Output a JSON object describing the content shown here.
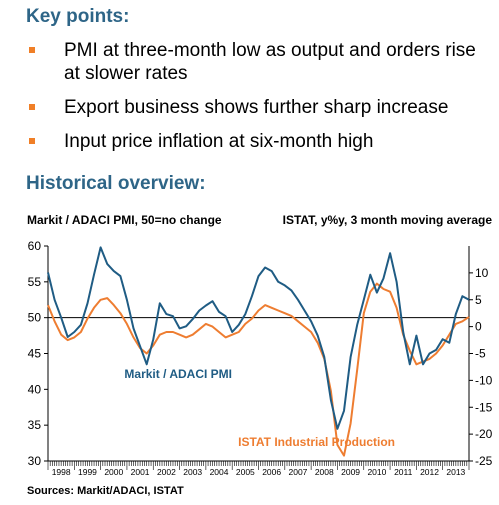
{
  "key_points": {
    "title": "Key points:",
    "items": [
      {
        "text": "PMI at three-month low as output and orders rise at slower rates"
      },
      {
        "text": "Export business shows further sharp increase"
      },
      {
        "text": "Input price inflation at six-month high"
      }
    ]
  },
  "historical": {
    "title": "Historical overview:",
    "sources": "Sources: Markit/ADACI, ISTAT"
  },
  "colors": {
    "title": "#2e6587",
    "bullet": "#f07f27",
    "pmi": "#1f5c84",
    "istat": "#ee7d31"
  },
  "chart_data": {
    "type": "line",
    "left_axis_label": "Markit / ADACI PMI, 50=no change",
    "right_axis_label": "ISTAT, y%y, 3 month moving average",
    "y_left": {
      "lim": [
        30,
        60
      ],
      "ticks": [
        "30",
        "35",
        "40",
        "45",
        "50",
        "55",
        "60"
      ]
    },
    "y_right": {
      "lim": [
        -25,
        15
      ],
      "ticks": [
        "-25",
        "-20",
        "-15",
        "-10",
        "-5",
        "0",
        "5",
        "10"
      ]
    },
    "x_range": [
      1998.0,
      2014.0
    ],
    "x_ticks": [
      "1998",
      "1999",
      "2000",
      "2001",
      "2002",
      "2003",
      "2004",
      "2005",
      "2006",
      "2007",
      "2008",
      "2009",
      "2010",
      "2011",
      "2012",
      "2013"
    ],
    "series": [
      {
        "name": "Markit / ADACI PMI",
        "axis": "left",
        "points": [
          [
            1998.0,
            56.3
          ],
          [
            1998.25,
            52.5
          ],
          [
            1998.5,
            50.0
          ],
          [
            1998.75,
            47.3
          ],
          [
            1999.0,
            48.0
          ],
          [
            1999.25,
            49.0
          ],
          [
            1999.5,
            52.0
          ],
          [
            1999.75,
            56.0
          ],
          [
            2000.0,
            59.8
          ],
          [
            2000.25,
            57.5
          ],
          [
            2000.5,
            56.5
          ],
          [
            2000.75,
            55.8
          ],
          [
            2001.0,
            52.5
          ],
          [
            2001.25,
            48.5
          ],
          [
            2001.5,
            46.0
          ],
          [
            2001.75,
            43.5
          ],
          [
            2002.0,
            47.0
          ],
          [
            2002.25,
            52.0
          ],
          [
            2002.5,
            50.5
          ],
          [
            2002.75,
            50.2
          ],
          [
            2003.0,
            48.5
          ],
          [
            2003.25,
            48.8
          ],
          [
            2003.5,
            49.8
          ],
          [
            2003.75,
            51.0
          ],
          [
            2004.0,
            51.7
          ],
          [
            2004.25,
            52.3
          ],
          [
            2004.5,
            50.8
          ],
          [
            2004.75,
            50.2
          ],
          [
            2005.0,
            48.0
          ],
          [
            2005.25,
            49.0
          ],
          [
            2005.5,
            50.5
          ],
          [
            2005.75,
            53.0
          ],
          [
            2006.0,
            55.8
          ],
          [
            2006.25,
            57.0
          ],
          [
            2006.5,
            56.5
          ],
          [
            2006.75,
            55.0
          ],
          [
            2007.0,
            54.5
          ],
          [
            2007.25,
            53.8
          ],
          [
            2007.5,
            52.5
          ],
          [
            2007.75,
            51.0
          ],
          [
            2008.0,
            49.5
          ],
          [
            2008.25,
            47.5
          ],
          [
            2008.5,
            44.5
          ],
          [
            2008.75,
            38.5
          ],
          [
            2009.0,
            34.5
          ],
          [
            2009.25,
            37.0
          ],
          [
            2009.5,
            44.5
          ],
          [
            2009.75,
            49.0
          ],
          [
            2010.0,
            52.5
          ],
          [
            2010.25,
            56.0
          ],
          [
            2010.5,
            53.5
          ],
          [
            2010.75,
            55.5
          ],
          [
            2011.0,
            59.0
          ],
          [
            2011.25,
            55.0
          ],
          [
            2011.5,
            48.0
          ],
          [
            2011.75,
            43.5
          ],
          [
            2012.0,
            47.5
          ],
          [
            2012.25,
            43.5
          ],
          [
            2012.5,
            45.0
          ],
          [
            2012.75,
            45.5
          ],
          [
            2013.0,
            47.0
          ],
          [
            2013.25,
            46.5
          ],
          [
            2013.5,
            50.5
          ],
          [
            2013.75,
            53.0
          ],
          [
            2014.0,
            52.5
          ]
        ]
      },
      {
        "name": "ISTAT Industrial Production",
        "axis": "right",
        "points": [
          [
            1998.0,
            4.0
          ],
          [
            1998.25,
            1.0
          ],
          [
            1998.5,
            -1.5
          ],
          [
            1998.75,
            -2.5
          ],
          [
            1999.0,
            -2.0
          ],
          [
            1999.25,
            -1.0
          ],
          [
            1999.5,
            1.5
          ],
          [
            1999.75,
            3.5
          ],
          [
            2000.0,
            5.0
          ],
          [
            2000.25,
            5.3
          ],
          [
            2000.5,
            4.0
          ],
          [
            2000.75,
            2.5
          ],
          [
            2001.0,
            0.5
          ],
          [
            2001.25,
            -2.0
          ],
          [
            2001.5,
            -4.0
          ],
          [
            2001.75,
            -5.0
          ],
          [
            2002.0,
            -3.5
          ],
          [
            2002.25,
            -1.5
          ],
          [
            2002.5,
            -1.0
          ],
          [
            2002.75,
            -1.0
          ],
          [
            2003.0,
            -1.5
          ],
          [
            2003.25,
            -2.0
          ],
          [
            2003.5,
            -1.5
          ],
          [
            2003.75,
            -0.5
          ],
          [
            2004.0,
            0.5
          ],
          [
            2004.25,
            0.0
          ],
          [
            2004.5,
            -1.0
          ],
          [
            2004.75,
            -2.0
          ],
          [
            2005.0,
            -1.5
          ],
          [
            2005.25,
            -1.0
          ],
          [
            2005.5,
            0.5
          ],
          [
            2005.75,
            1.5
          ],
          [
            2006.0,
            3.0
          ],
          [
            2006.25,
            4.0
          ],
          [
            2006.5,
            3.5
          ],
          [
            2006.75,
            3.0
          ],
          [
            2007.0,
            2.5
          ],
          [
            2007.25,
            2.0
          ],
          [
            2007.5,
            1.0
          ],
          [
            2007.75,
            0.0
          ],
          [
            2008.0,
            -1.0
          ],
          [
            2008.25,
            -3.0
          ],
          [
            2008.5,
            -6.0
          ],
          [
            2008.75,
            -12.0
          ],
          [
            2009.0,
            -22.0
          ],
          [
            2009.25,
            -24.0
          ],
          [
            2009.5,
            -18.0
          ],
          [
            2009.75,
            -8.0
          ],
          [
            2010.0,
            2.5
          ],
          [
            2010.25,
            6.5
          ],
          [
            2010.5,
            8.0
          ],
          [
            2010.75,
            7.0
          ],
          [
            2011.0,
            6.5
          ],
          [
            2011.25,
            3.5
          ],
          [
            2011.5,
            -1.5
          ],
          [
            2011.75,
            -4.5
          ],
          [
            2012.0,
            -7.0
          ],
          [
            2012.25,
            -6.5
          ],
          [
            2012.5,
            -6.0
          ],
          [
            2012.75,
            -5.0
          ],
          [
            2013.0,
            -3.5
          ],
          [
            2013.25,
            -1.5
          ],
          [
            2013.5,
            0.5
          ],
          [
            2013.75,
            1.0
          ],
          [
            2014.0,
            1.8
          ]
        ]
      }
    ]
  }
}
